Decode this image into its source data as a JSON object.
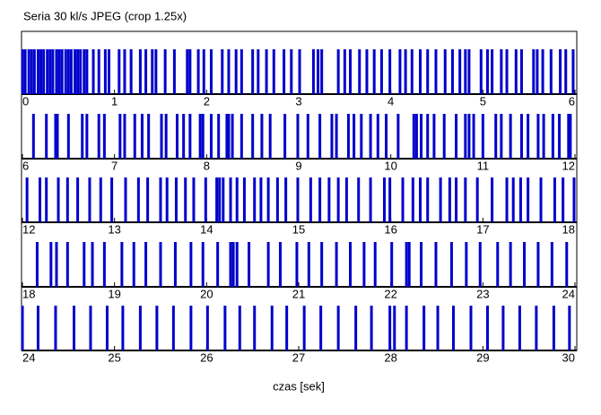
{
  "chart_data": {
    "type": "event",
    "title": "Seria 30 kl/s JPEG (crop 1.25x)",
    "xlabel": "czas [sek]",
    "color": "#0000cc",
    "rows": [
      {
        "xlim": [
          0,
          6
        ],
        "xticks": [
          0,
          1,
          2,
          3,
          4,
          5,
          6
        ]
      },
      {
        "xlim": [
          6,
          12
        ],
        "xticks": [
          6,
          7,
          8,
          9,
          10,
          11,
          12
        ]
      },
      {
        "xlim": [
          12,
          18
        ],
        "xticks": [
          12,
          13,
          14,
          15,
          16,
          17,
          18
        ]
      },
      {
        "xlim": [
          18,
          24
        ],
        "xticks": [
          18,
          19,
          20,
          21,
          22,
          23,
          24
        ]
      },
      {
        "xlim": [
          24,
          30
        ],
        "xticks": [
          24,
          25,
          26,
          27,
          28,
          29,
          30
        ]
      }
    ],
    "x": [
      0,
      0.03,
      0.07,
      0.1,
      0.13,
      0.17,
      0.2,
      0.23,
      0.27,
      0.3,
      0.33,
      0.37,
      0.4,
      0.43,
      0.47,
      0.5,
      0.53,
      0.57,
      0.6,
      0.63,
      0.67,
      0.7,
      0.77,
      0.83,
      0.9,
      0.94,
      1.05,
      1.11,
      1.18,
      1.28,
      1.34,
      1.41,
      1.45,
      1.55,
      1.65,
      1.79,
      1.82,
      1.91,
      1.97,
      2.05,
      2.17,
      2.24,
      2.32,
      2.38,
      2.5,
      2.56,
      2.65,
      2.73,
      2.84,
      2.92,
      3.01,
      3.16,
      3.21,
      3.25,
      3.43,
      3.5,
      3.56,
      3.66,
      3.74,
      3.82,
      3.9,
      3.99,
      4.1,
      4.16,
      4.23,
      4.32,
      4.4,
      4.49,
      4.59,
      4.67,
      4.75,
      4.81,
      4.85,
      4.98,
      5.05,
      5.1,
      5.2,
      5.26,
      5.36,
      5.42,
      5.55,
      5.59,
      5.65,
      5.74,
      5.84,
      5.9,
      5.98,
      6.12,
      6.26,
      6.36,
      6.38,
      6.5,
      6.65,
      6.7,
      6.83,
      6.89,
      7.06,
      7.11,
      7.22,
      7.3,
      7.37,
      7.51,
      7.56,
      7.68,
      7.75,
      7.82,
      7.93,
      7.96,
      8.05,
      8.13,
      8.22,
      8.24,
      8.28,
      8.38,
      8.5,
      8.6,
      8.69,
      8.85,
      8.99,
      9.1,
      9.23,
      9.36,
      9.41,
      9.54,
      9.6,
      9.68,
      9.78,
      9.86,
      9.95,
      10.08,
      10.25,
      10.28,
      10.33,
      10.4,
      10.47,
      10.58,
      10.71,
      10.81,
      10.85,
      10.9,
      11,
      11.14,
      11.2,
      11.3,
      11.42,
      11.49,
      11.6,
      11.66,
      11.76,
      11.83,
      11.93,
      11.95,
      12.05,
      12.19,
      12.26,
      12.39,
      12.49,
      12.6,
      12.73,
      12.85,
      12.97,
      13.12,
      13.26,
      13.36,
      13.5,
      13.57,
      13.67,
      13.77,
      13.86,
      13.99,
      14.11,
      14.14,
      14.18,
      14.26,
      14.33,
      14.41,
      14.52,
      14.59,
      14.67,
      14.77,
      14.86,
      14.99,
      15.13,
      15.23,
      15.33,
      15.43,
      15.52,
      15.65,
      15.78,
      15.93,
      15.99,
      16.13,
      16.24,
      16.32,
      16.4,
      16.54,
      16.64,
      16.71,
      16.81,
      16.94,
      17.1,
      17.26,
      17.33,
      17.41,
      17.49,
      17.63,
      17.78,
      17.87,
      17.99,
      18.16,
      18.31,
      18.37,
      18.49,
      18.67,
      18.76,
      18.89,
      19.08,
      19.21,
      19.34,
      19.5,
      19.66,
      19.83,
      19.96,
      20.12,
      20.26,
      20.29,
      20.33,
      20.46,
      20.67,
      20.8,
      20.98,
      21.11,
      21.25,
      21.41,
      21.56,
      21.71,
      21.83,
      22.01,
      22.17,
      22.2,
      22.33,
      22.49,
      22.66,
      22.82,
      22.97,
      23.16,
      23.3,
      23.45,
      23.6,
      23.75,
      23.91,
      24,
      24.17,
      24.36,
      24.56,
      24.74,
      24.92,
      25.09,
      25.28,
      25.46,
      25.64,
      25.83,
      26.01,
      26.2,
      26.36,
      26.52,
      26.71,
      26.87,
      27.06,
      27.24,
      27.43,
      27.62,
      27.79,
      27.99,
      28.04,
      28.17,
      28.36,
      28.51,
      28.68,
      28.87,
      29.05,
      29.22,
      29.4,
      29.58,
      29.77,
      29.94
    ]
  }
}
